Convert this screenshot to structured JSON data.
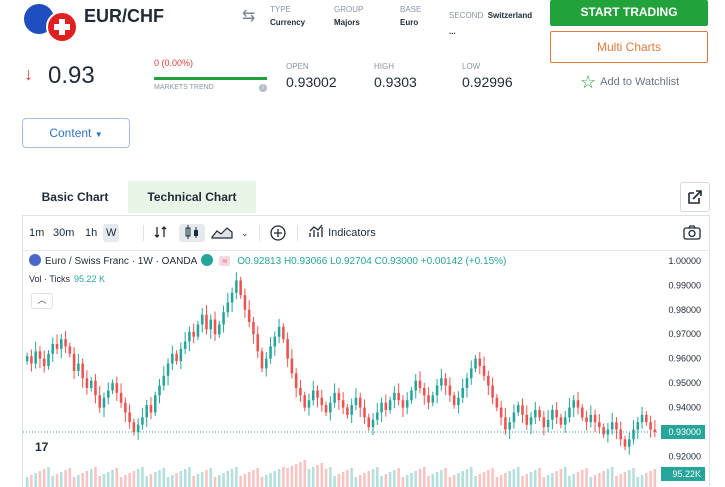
{
  "header": {
    "pair": "EUR/CHF",
    "meta": [
      {
        "label": "TYPE",
        "value": "Currency"
      },
      {
        "label": "GROUP",
        "value": "Majors"
      },
      {
        "label": "BASE",
        "value": "Euro"
      },
      {
        "label": "SECOND",
        "value": "Switzerland",
        "extra": "..."
      }
    ]
  },
  "actions": {
    "start_trading": "START TRADING",
    "multi_charts": "Multi Charts",
    "watchlist": "Add to Watchlist"
  },
  "quote": {
    "price": "0.93",
    "change": "0 (0.00%)",
    "trend_label": "MARKETS TREND",
    "info_icon": "i",
    "stats": [
      {
        "label": "OPEN",
        "value": "0.93002"
      },
      {
        "label": "HIGH",
        "value": "0.9303"
      },
      {
        "label": "LOW",
        "value": "0.92996"
      }
    ]
  },
  "content_button": "Content",
  "tabs": {
    "basic": "Basic Chart",
    "technical": "Technical Chart"
  },
  "toolbar": {
    "intervals": [
      "1m",
      "30m",
      "1h",
      "W"
    ],
    "active_interval": "W",
    "indicators": "Indicators"
  },
  "legend": {
    "symbol": "Euro / Swiss Franc · 1W · OANDA",
    "open": "O0.92813",
    "high": "H0.93066",
    "low": "L0.92704",
    "close": "C0.93000",
    "change": "+0.00142 (+0.15%)",
    "vol_label": "Vol · Ticks",
    "vol_value": "95.22 K"
  },
  "chart_data": {
    "type": "candlestick",
    "yticks": [
      "1.00000",
      "0.99000",
      "0.98000",
      "0.97000",
      "0.96000",
      "0.95000",
      "0.94000",
      "0.93000",
      "0.92000"
    ],
    "ylim": [
      0.912,
      1.002
    ],
    "last_price": "0.93000",
    "last_volume": "95.22K",
    "up_color": "#26a69a",
    "down_color": "#ef5350",
    "close_series": [
      0.961,
      0.958,
      0.963,
      0.96,
      0.957,
      0.962,
      0.966,
      0.964,
      0.968,
      0.965,
      0.962,
      0.955,
      0.958,
      0.952,
      0.948,
      0.951,
      0.945,
      0.94,
      0.944,
      0.947,
      0.95,
      0.946,
      0.942,
      0.938,
      0.934,
      0.93,
      0.933,
      0.936,
      0.941,
      0.938,
      0.945,
      0.949,
      0.953,
      0.958,
      0.962,
      0.959,
      0.964,
      0.967,
      0.971,
      0.969,
      0.974,
      0.978,
      0.972,
      0.976,
      0.97,
      0.974,
      0.979,
      0.983,
      0.987,
      0.992,
      0.986,
      0.98,
      0.975,
      0.97,
      0.963,
      0.956,
      0.96,
      0.965,
      0.969,
      0.973,
      0.968,
      0.96,
      0.954,
      0.948,
      0.945,
      0.94,
      0.943,
      0.947,
      0.944,
      0.941,
      0.938,
      0.942,
      0.946,
      0.943,
      0.94,
      0.937,
      0.941,
      0.944,
      0.94,
      0.936,
      0.932,
      0.935,
      0.938,
      0.942,
      0.939,
      0.943,
      0.946,
      0.943,
      0.94,
      0.943,
      0.947,
      0.951,
      0.948,
      0.945,
      0.942,
      0.945,
      0.949,
      0.952,
      0.949,
      0.945,
      0.941,
      0.944,
      0.948,
      0.952,
      0.956,
      0.96,
      0.957,
      0.953,
      0.949,
      0.944,
      0.94,
      0.936,
      0.931,
      0.934,
      0.938,
      0.941,
      0.937,
      0.933,
      0.936,
      0.939,
      0.936,
      0.932,
      0.935,
      0.939,
      0.936,
      0.933,
      0.936,
      0.94,
      0.943,
      0.94,
      0.936,
      0.934,
      0.937,
      0.934,
      0.932,
      0.929,
      0.931,
      0.934,
      0.931,
      0.927,
      0.924,
      0.927,
      0.931,
      0.934,
      0.937,
      0.934,
      0.931,
      0.93
    ]
  }
}
